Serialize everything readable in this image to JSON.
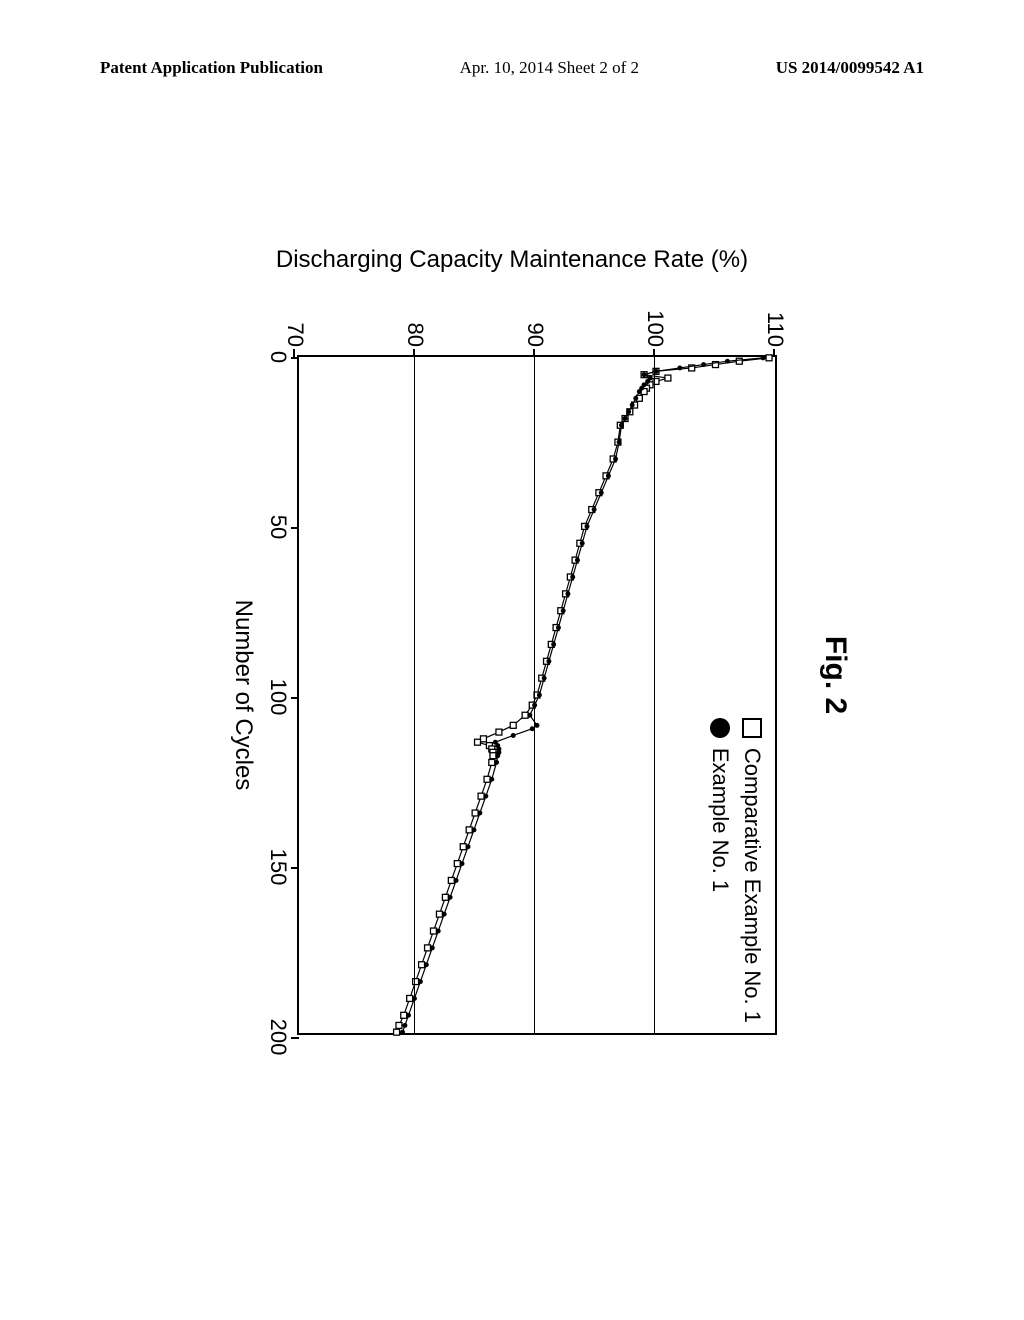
{
  "header": {
    "left": "Patent Application Publication",
    "center": "Apr. 10, 2014  Sheet 2 of 2",
    "right": "US 2014/0099542 A1"
  },
  "figure": {
    "label": "Fig. 2",
    "label_fontsize": 30,
    "x_label": "Number of Cycles",
    "y_label": "Discharging Capacity Maintenance Rate  (%)",
    "axis_label_fontsize": 24,
    "tick_fontsize": 22,
    "xlim": [
      0,
      200
    ],
    "ylim": [
      70,
      110
    ],
    "x_ticks": [
      0,
      50,
      100,
      150,
      200
    ],
    "y_ticks": [
      70,
      80,
      90,
      100,
      110
    ],
    "y_gridlines": [
      80,
      90,
      100
    ],
    "background_color": "#ffffff",
    "axis_color": "#000000",
    "grid_color": "#000000",
    "legend": {
      "position": "top-right",
      "items": [
        {
          "marker": "open-square",
          "label": "Comparative Example  No. 1",
          "color": "#000000"
        },
        {
          "marker": "filled-circle",
          "label": "Example  No. 1",
          "color": "#000000"
        }
      ]
    },
    "series": [
      {
        "name": "Comparative Example No. 1",
        "marker": "open-square",
        "marker_size": 6,
        "line_width": 1.2,
        "color": "#000000",
        "data": [
          [
            0,
            109.5
          ],
          [
            1,
            107.0
          ],
          [
            2,
            105.0
          ],
          [
            3,
            103.0
          ],
          [
            4,
            100.0
          ],
          [
            5,
            99.0
          ],
          [
            6,
            101.0
          ],
          [
            7,
            100.0
          ],
          [
            8,
            99.5
          ],
          [
            9,
            99.2
          ],
          [
            10,
            99.0
          ],
          [
            12,
            98.6
          ],
          [
            14,
            98.2
          ],
          [
            16,
            97.8
          ],
          [
            18,
            97.4
          ],
          [
            20,
            97.0
          ],
          [
            25,
            96.8
          ],
          [
            30,
            96.4
          ],
          [
            35,
            95.8
          ],
          [
            40,
            95.2
          ],
          [
            45,
            94.6
          ],
          [
            50,
            94.0
          ],
          [
            55,
            93.6
          ],
          [
            60,
            93.2
          ],
          [
            65,
            92.8
          ],
          [
            70,
            92.4
          ],
          [
            75,
            92.0
          ],
          [
            80,
            91.6
          ],
          [
            85,
            91.2
          ],
          [
            90,
            90.8
          ],
          [
            95,
            90.4
          ],
          [
            100,
            90.0
          ],
          [
            103,
            89.6
          ],
          [
            106,
            89.0
          ],
          [
            109,
            88.0
          ],
          [
            111,
            86.8
          ],
          [
            113,
            85.5
          ],
          [
            114,
            85.0
          ],
          [
            115,
            86.0
          ],
          [
            116,
            86.2
          ],
          [
            117,
            86.3
          ],
          [
            118,
            86.3
          ],
          [
            120,
            86.2
          ],
          [
            125,
            85.8
          ],
          [
            130,
            85.3
          ],
          [
            135,
            84.8
          ],
          [
            140,
            84.3
          ],
          [
            145,
            83.8
          ],
          [
            150,
            83.3
          ],
          [
            155,
            82.8
          ],
          [
            160,
            82.3
          ],
          [
            165,
            81.8
          ],
          [
            170,
            81.3
          ],
          [
            175,
            80.8
          ],
          [
            180,
            80.3
          ],
          [
            185,
            79.8
          ],
          [
            190,
            79.3
          ],
          [
            195,
            78.8
          ],
          [
            198,
            78.4
          ],
          [
            200,
            78.2
          ]
        ]
      },
      {
        "name": "Example No. 1",
        "marker": "filled-circle",
        "marker_size": 5,
        "line_width": 1.2,
        "color": "#000000",
        "data": [
          [
            0,
            109.0
          ],
          [
            1,
            106.0
          ],
          [
            2,
            104.0
          ],
          [
            3,
            102.0
          ],
          [
            4,
            100.0
          ],
          [
            5,
            99.0
          ],
          [
            6,
            99.5
          ],
          [
            7,
            99.3
          ],
          [
            8,
            99.0
          ],
          [
            9,
            98.8
          ],
          [
            10,
            98.6
          ],
          [
            12,
            98.3
          ],
          [
            14,
            98.0
          ],
          [
            16,
            97.7
          ],
          [
            18,
            97.4
          ],
          [
            20,
            97.1
          ],
          [
            25,
            96.9
          ],
          [
            30,
            96.6
          ],
          [
            35,
            96.0
          ],
          [
            40,
            95.4
          ],
          [
            45,
            94.8
          ],
          [
            50,
            94.2
          ],
          [
            55,
            93.8
          ],
          [
            60,
            93.4
          ],
          [
            65,
            93.0
          ],
          [
            70,
            92.6
          ],
          [
            75,
            92.2
          ],
          [
            80,
            91.8
          ],
          [
            85,
            91.4
          ],
          [
            90,
            91.0
          ],
          [
            95,
            90.6
          ],
          [
            100,
            90.2
          ],
          [
            103,
            89.8
          ],
          [
            106,
            89.4
          ],
          [
            109,
            90.0
          ],
          [
            110,
            89.6
          ],
          [
            112,
            88.0
          ],
          [
            114,
            86.5
          ],
          [
            115,
            86.7
          ],
          [
            116,
            86.8
          ],
          [
            117,
            86.8
          ],
          [
            118,
            86.7
          ],
          [
            120,
            86.6
          ],
          [
            125,
            86.2
          ],
          [
            130,
            85.7
          ],
          [
            135,
            85.2
          ],
          [
            140,
            84.7
          ],
          [
            145,
            84.2
          ],
          [
            150,
            83.7
          ],
          [
            155,
            83.2
          ],
          [
            160,
            82.7
          ],
          [
            165,
            82.2
          ],
          [
            170,
            81.7
          ],
          [
            175,
            81.2
          ],
          [
            180,
            80.7
          ],
          [
            185,
            80.2
          ],
          [
            190,
            79.7
          ],
          [
            195,
            79.2
          ],
          [
            198,
            78.9
          ],
          [
            200,
            78.7
          ]
        ]
      }
    ]
  }
}
